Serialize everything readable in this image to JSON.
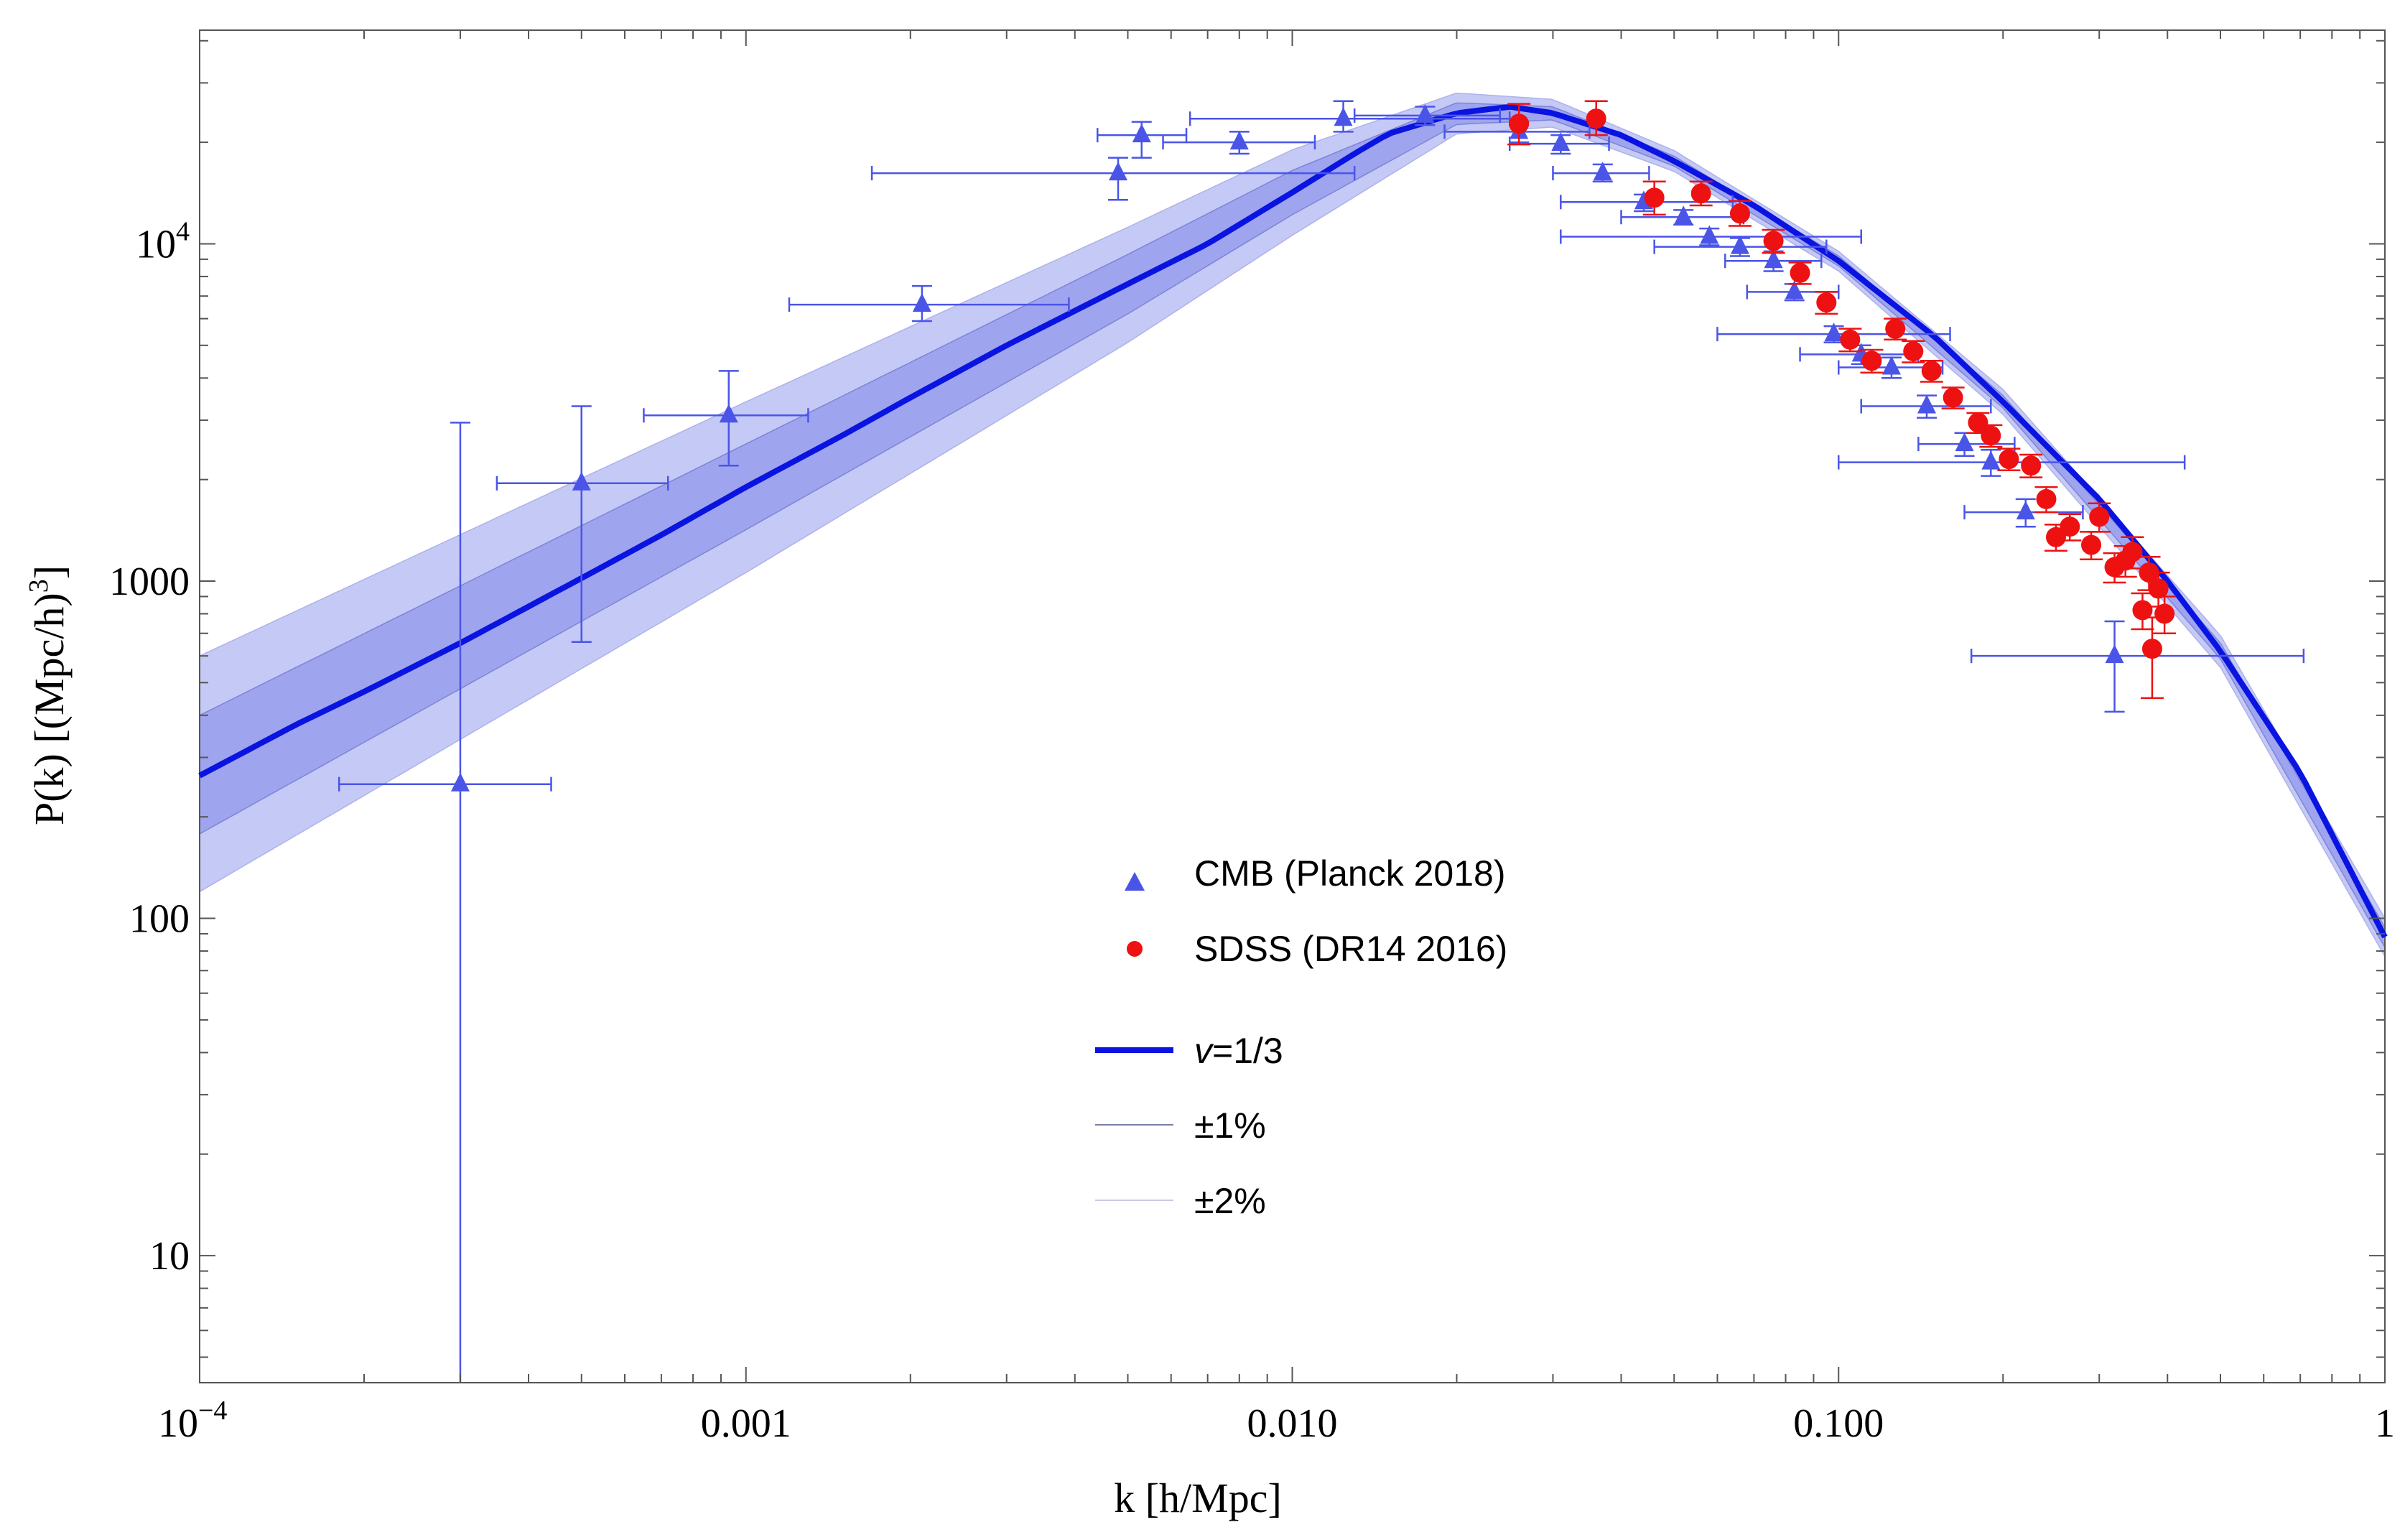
{
  "chart_data": {
    "type": "scatter",
    "title": "",
    "xlabel": "k [h/Mpc]",
    "ylabel_parts": {
      "main": "P(k) [(Mpc/h)",
      "sup": "3",
      "close": "]"
    },
    "xscale": "log",
    "yscale": "log",
    "xlim": [
      0.0001,
      1
    ],
    "ylim": [
      4.2,
      43000
    ],
    "x_ticks": [
      {
        "value": 0.0001,
        "base": "10",
        "exp": "−4"
      },
      {
        "value": 0.001,
        "label": "0.001"
      },
      {
        "value": 0.01,
        "label": "0.010"
      },
      {
        "value": 0.1,
        "label": "0.100"
      },
      {
        "value": 1,
        "label": "1"
      }
    ],
    "y_ticks": [
      {
        "value": 10,
        "label": "10"
      },
      {
        "value": 100,
        "label": "100"
      },
      {
        "value": 1000,
        "label": "1000"
      },
      {
        "value": 10000,
        "base": "10",
        "exp": "4"
      }
    ],
    "colors": {
      "cmb": "#4a55e8",
      "sdss": "#ee1111",
      "model": "#0a14e0",
      "band_outer": "#c2c6f5",
      "band_inner": "#9aa0ee"
    },
    "legend": {
      "position": "center",
      "entries": [
        {
          "symbol": "triangle",
          "label": "CMB (Planck 2018)"
        },
        {
          "symbol": "circle",
          "label": "SDSS (DR14 2016)"
        },
        {
          "symbol": "line-thick",
          "label_italic": "v",
          "label_rest": "=1/3"
        },
        {
          "symbol": "line-thin",
          "label": "±1%"
        },
        {
          "symbol": "line-faint",
          "label": "±2%"
        }
      ]
    },
    "model_curve": {
      "name": "v=1/3",
      "points": [
        [
          0.0001,
          265
        ],
        [
          0.00015,
          375
        ],
        [
          0.0002,
          470
        ],
        [
          0.0003,
          655
        ],
        [
          0.0005,
          1020
        ],
        [
          0.0007,
          1370
        ],
        [
          0.001,
          1900
        ],
        [
          0.0015,
          2700
        ],
        [
          0.002,
          3500
        ],
        [
          0.003,
          5000
        ],
        [
          0.005,
          7600
        ],
        [
          0.007,
          10000
        ],
        [
          0.01,
          14200
        ],
        [
          0.013,
          18500
        ],
        [
          0.015,
          21200
        ],
        [
          0.02,
          24400
        ],
        [
          0.025,
          25500
        ],
        [
          0.03,
          24400
        ],
        [
          0.04,
          21000
        ],
        [
          0.05,
          17600
        ],
        [
          0.07,
          13000
        ],
        [
          0.1,
          8900
        ],
        [
          0.15,
          5300
        ],
        [
          0.2,
          3400
        ],
        [
          0.3,
          1750
        ],
        [
          0.4,
          1000
        ],
        [
          0.5,
          620
        ],
        [
          0.7,
          270
        ],
        [
          1.0,
          88
        ]
      ],
      "band_inner": {
        "upper": [
          [
            0.0001,
            400
          ],
          [
            0.001,
            2550
          ],
          [
            0.005,
            9300
          ],
          [
            0.01,
            16500
          ],
          [
            0.02,
            26200
          ],
          [
            0.03,
            25500
          ],
          [
            0.05,
            18200
          ],
          [
            0.1,
            9200
          ],
          [
            0.2,
            3550
          ],
          [
            0.5,
            655
          ],
          [
            1.0,
            94
          ]
        ],
        "lower": [
          [
            0.0001,
            178
          ],
          [
            0.001,
            1420
          ],
          [
            0.005,
            6200
          ],
          [
            0.01,
            12200
          ],
          [
            0.02,
            22600
          ],
          [
            0.03,
            23300
          ],
          [
            0.05,
            17000
          ],
          [
            0.1,
            8600
          ],
          [
            0.2,
            3260
          ],
          [
            0.5,
            588
          ],
          [
            1.0,
            82
          ]
        ]
      },
      "band_outer": {
        "upper": [
          [
            0.0001,
            600
          ],
          [
            0.001,
            3400
          ],
          [
            0.005,
            11200
          ],
          [
            0.01,
            19000
          ],
          [
            0.02,
            28000
          ],
          [
            0.03,
            26800
          ],
          [
            0.05,
            18900
          ],
          [
            0.1,
            9500
          ],
          [
            0.2,
            3700
          ],
          [
            0.5,
            690
          ],
          [
            1.0,
            100
          ]
        ],
        "lower": [
          [
            0.0001,
            120
          ],
          [
            0.001,
            1060
          ],
          [
            0.005,
            5100
          ],
          [
            0.01,
            10600
          ],
          [
            0.02,
            21200
          ],
          [
            0.03,
            22200
          ],
          [
            0.05,
            16400
          ],
          [
            0.1,
            8300
          ],
          [
            0.2,
            3120
          ],
          [
            0.5,
            555
          ],
          [
            1.0,
            77
          ]
        ]
      }
    },
    "series": [
      {
        "name": "CMB (Planck 2018)",
        "marker": "triangle",
        "points": [
          {
            "x": 0.0003,
            "y": 250,
            "xlo": 0.00018,
            "xhi": 0.00044,
            "ylo": 4.2,
            "yhi": 2950
          },
          {
            "x": 0.0005,
            "y": 1950,
            "xlo": 0.00035,
            "xhi": 0.00072,
            "ylo": 660,
            "yhi": 3300
          },
          {
            "x": 0.00093,
            "y": 3100,
            "xlo": 0.00065,
            "xhi": 0.0013,
            "ylo": 2200,
            "yhi": 4200
          },
          {
            "x": 0.0021,
            "y": 6600,
            "xlo": 0.0012,
            "xhi": 0.0039,
            "ylo": 5900,
            "yhi": 7500
          },
          {
            "x": 0.0048,
            "y": 16200,
            "xlo": 0.0017,
            "xhi": 0.013,
            "ylo": 13500,
            "yhi": 18000
          },
          {
            "x": 0.0053,
            "y": 21000,
            "xlo": 0.0044,
            "xhi": 0.0064,
            "ylo": 18000,
            "yhi": 23000
          },
          {
            "x": 0.008,
            "y": 20000,
            "xlo": 0.0058,
            "xhi": 0.011,
            "ylo": 18500,
            "yhi": 21500
          },
          {
            "x": 0.0124,
            "y": 23500,
            "xlo": 0.0065,
            "xhi": 0.025,
            "ylo": 21500,
            "yhi": 26500
          },
          {
            "x": 0.0175,
            "y": 24000,
            "xlo": 0.013,
            "xhi": 0.024,
            "ylo": 22500,
            "yhi": 25500
          },
          {
            "x": 0.026,
            "y": 21500,
            "xlo": 0.019,
            "xhi": 0.035,
            "ylo": 20000,
            "yhi": 23000
          },
          {
            "x": 0.031,
            "y": 19800,
            "xlo": 0.025,
            "xhi": 0.038,
            "ylo": 18500,
            "yhi": 21000
          },
          {
            "x": 0.037,
            "y": 16200,
            "xlo": 0.03,
            "xhi": 0.045,
            "ylo": 15300,
            "yhi": 17200
          },
          {
            "x": 0.044,
            "y": 13300,
            "xlo": 0.031,
            "xhi": 0.064,
            "ylo": 12500,
            "yhi": 14000
          },
          {
            "x": 0.052,
            "y": 12000,
            "xlo": 0.04,
            "xhi": 0.067,
            "ylo": 11400,
            "yhi": 12600
          },
          {
            "x": 0.058,
            "y": 10500,
            "xlo": 0.031,
            "xhi": 0.11,
            "ylo": 9900,
            "yhi": 11100
          },
          {
            "x": 0.066,
            "y": 9800,
            "xlo": 0.046,
            "xhi": 0.095,
            "ylo": 9200,
            "yhi": 10400
          },
          {
            "x": 0.076,
            "y": 8900,
            "xlo": 0.062,
            "xhi": 0.093,
            "ylo": 8300,
            "yhi": 9500
          },
          {
            "x": 0.083,
            "y": 7200,
            "xlo": 0.068,
            "xhi": 0.1,
            "ylo": 6800,
            "yhi": 7600
          },
          {
            "x": 0.098,
            "y": 5400,
            "xlo": 0.06,
            "xhi": 0.16,
            "ylo": 5100,
            "yhi": 5700
          },
          {
            "x": 0.11,
            "y": 4700,
            "xlo": 0.085,
            "xhi": 0.14,
            "ylo": 4400,
            "yhi": 5000
          },
          {
            "x": 0.125,
            "y": 4300,
            "xlo": 0.1,
            "xhi": 0.155,
            "ylo": 4000,
            "yhi": 4600
          },
          {
            "x": 0.145,
            "y": 3300,
            "xlo": 0.11,
            "xhi": 0.19,
            "ylo": 3050,
            "yhi": 3550
          },
          {
            "x": 0.17,
            "y": 2550,
            "xlo": 0.14,
            "xhi": 0.21,
            "ylo": 2350,
            "yhi": 2750
          },
          {
            "x": 0.19,
            "y": 2250,
            "xlo": 0.1,
            "xhi": 0.43,
            "ylo": 2050,
            "yhi": 2450
          },
          {
            "x": 0.22,
            "y": 1600,
            "xlo": 0.17,
            "xhi": 0.28,
            "ylo": 1450,
            "yhi": 1750
          },
          {
            "x": 0.32,
            "y": 600,
            "xlo": 0.175,
            "xhi": 0.71,
            "ylo": 410,
            "yhi": 760
          }
        ]
      },
      {
        "name": "SDSS (DR14 2016)",
        "marker": "circle",
        "points": [
          {
            "x": 0.026,
            "y": 22700,
            "ylo": 19700,
            "yhi": 26000
          },
          {
            "x": 0.036,
            "y": 23500,
            "ylo": 21000,
            "yhi": 26500
          },
          {
            "x": 0.046,
            "y": 13700,
            "ylo": 12200,
            "yhi": 15300
          },
          {
            "x": 0.056,
            "y": 14100,
            "ylo": 13000,
            "yhi": 15300
          },
          {
            "x": 0.066,
            "y": 12300,
            "ylo": 11300,
            "yhi": 13400
          },
          {
            "x": 0.076,
            "y": 10200,
            "ylo": 9400,
            "yhi": 11000
          },
          {
            "x": 0.085,
            "y": 8200,
            "ylo": 7600,
            "yhi": 8800
          },
          {
            "x": 0.095,
            "y": 6700,
            "ylo": 6200,
            "yhi": 7200
          },
          {
            "x": 0.105,
            "y": 5200,
            "ylo": 4800,
            "yhi": 5600
          },
          {
            "x": 0.115,
            "y": 4500,
            "ylo": 4150,
            "yhi": 4850
          },
          {
            "x": 0.127,
            "y": 5600,
            "ylo": 5200,
            "yhi": 6000
          },
          {
            "x": 0.137,
            "y": 4800,
            "ylo": 4450,
            "yhi": 5150
          },
          {
            "x": 0.148,
            "y": 4200,
            "ylo": 3900,
            "yhi": 4500
          },
          {
            "x": 0.162,
            "y": 3500,
            "ylo": 3250,
            "yhi": 3750
          },
          {
            "x": 0.18,
            "y": 2950,
            "ylo": 2750,
            "yhi": 3150
          },
          {
            "x": 0.19,
            "y": 2700,
            "ylo": 2500,
            "yhi": 2900
          },
          {
            "x": 0.205,
            "y": 2300,
            "ylo": 2130,
            "yhi": 2470
          },
          {
            "x": 0.225,
            "y": 2200,
            "ylo": 2030,
            "yhi": 2370
          },
          {
            "x": 0.24,
            "y": 1750,
            "ylo": 1600,
            "yhi": 1900
          },
          {
            "x": 0.25,
            "y": 1350,
            "ylo": 1230,
            "yhi": 1470
          },
          {
            "x": 0.265,
            "y": 1450,
            "ylo": 1320,
            "yhi": 1580
          },
          {
            "x": 0.29,
            "y": 1280,
            "ylo": 1160,
            "yhi": 1400
          },
          {
            "x": 0.3,
            "y": 1550,
            "ylo": 1400,
            "yhi": 1700
          },
          {
            "x": 0.32,
            "y": 1100,
            "ylo": 990,
            "yhi": 1210
          },
          {
            "x": 0.335,
            "y": 1150,
            "ylo": 1030,
            "yhi": 1270
          },
          {
            "x": 0.345,
            "y": 1220,
            "ylo": 1090,
            "yhi": 1350
          },
          {
            "x": 0.36,
            "y": 820,
            "ylo": 720,
            "yhi": 920
          },
          {
            "x": 0.37,
            "y": 1060,
            "ylo": 940,
            "yhi": 1180
          },
          {
            "x": 0.375,
            "y": 630,
            "ylo": 450,
            "yhi": 780
          },
          {
            "x": 0.385,
            "y": 950,
            "ylo": 840,
            "yhi": 1060
          },
          {
            "x": 0.395,
            "y": 800,
            "ylo": 700,
            "yhi": 900
          }
        ]
      }
    ]
  }
}
